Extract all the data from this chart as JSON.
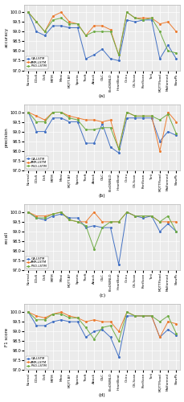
{
  "categories": [
    "Normal",
    "DDoS",
    "DoS",
    "MITM",
    "Mirai",
    "MQTT-BF",
    "Sparta",
    "Theft",
    "Attack",
    "C&C",
    "FileDWNLD",
    "HeartBeat",
    "Okiru",
    "OS-Scan",
    "PortScan",
    "Torii",
    "MQTTFlood",
    "Malformed",
    "SlowPk"
  ],
  "accuracy": {
    "GA_LSTM": [
      100.0,
      99.0,
      98.8,
      99.3,
      99.3,
      99.2,
      99.2,
      97.6,
      97.8,
      98.1,
      97.6,
      97.5,
      99.6,
      99.5,
      99.6,
      99.6,
      97.6,
      98.3,
      97.6
    ],
    "AMR_LSTM": [
      100.0,
      99.5,
      99.0,
      99.8,
      100.0,
      99.5,
      99.4,
      98.8,
      99.3,
      99.3,
      99.1,
      97.8,
      100.0,
      99.7,
      99.7,
      99.7,
      99.4,
      99.5,
      99.0
    ],
    "PSO_LSTM": [
      100.0,
      99.5,
      99.0,
      99.6,
      99.7,
      99.4,
      99.4,
      98.8,
      99.0,
      99.0,
      99.0,
      97.8,
      100.0,
      99.7,
      99.6,
      99.7,
      99.0,
      98.0,
      97.9
    ]
  },
  "precision": {
    "GA_LSTM": [
      100.0,
      99.0,
      99.0,
      99.7,
      99.7,
      99.5,
      99.5,
      98.4,
      98.4,
      99.4,
      98.2,
      97.9,
      99.7,
      99.7,
      99.7,
      99.7,
      98.5,
      99.0,
      98.8
    ],
    "AMR_LSTM": [
      100.0,
      99.8,
      99.6,
      100.0,
      100.0,
      99.8,
      99.7,
      99.6,
      99.6,
      99.5,
      99.6,
      98.1,
      100.0,
      99.8,
      99.8,
      99.8,
      98.0,
      100.0,
      99.5
    ],
    "PSO_LSTM": [
      100.0,
      99.5,
      99.5,
      100.0,
      100.0,
      99.7,
      99.6,
      99.1,
      99.1,
      99.2,
      99.2,
      98.1,
      100.0,
      99.8,
      99.8,
      99.8,
      99.6,
      99.9,
      98.9
    ]
  },
  "recall": {
    "GA_LSTM": [
      100.0,
      99.7,
      99.6,
      99.8,
      99.9,
      99.7,
      99.7,
      99.2,
      99.3,
      99.2,
      99.2,
      97.3,
      100.0,
      99.8,
      99.7,
      99.8,
      99.0,
      99.4,
      99.0
    ],
    "AMR_LSTM": [
      100.0,
      99.8,
      99.8,
      99.9,
      100.0,
      99.6,
      99.5,
      99.5,
      100.0,
      99.5,
      99.5,
      99.5,
      100.0,
      99.8,
      99.8,
      99.8,
      99.5,
      99.5,
      99.5
    ],
    "PSO_LSTM": [
      100.0,
      99.7,
      99.7,
      99.9,
      100.0,
      99.6,
      99.5,
      99.3,
      98.1,
      99.2,
      99.5,
      99.5,
      100.0,
      99.8,
      99.8,
      99.8,
      99.5,
      99.8,
      99.0
    ]
  },
  "f1": {
    "GA_LSTM": [
      100.0,
      99.3,
      99.3,
      99.5,
      99.6,
      99.5,
      99.5,
      98.7,
      99.0,
      99.1,
      98.7,
      97.7,
      99.8,
      99.8,
      99.8,
      99.8,
      98.7,
      99.1,
      98.8
    ],
    "AMR_LSTM": [
      100.0,
      99.8,
      99.7,
      99.9,
      100.0,
      99.8,
      99.7,
      99.5,
      99.6,
      99.5,
      99.5,
      99.0,
      100.0,
      99.8,
      99.8,
      99.8,
      98.7,
      99.5,
      99.4
    ],
    "PSO_LSTM": [
      100.0,
      99.6,
      99.6,
      99.9,
      99.9,
      99.7,
      99.7,
      99.2,
      98.6,
      99.2,
      99.3,
      98.5,
      100.0,
      99.8,
      99.8,
      99.8,
      99.5,
      99.8,
      98.9
    ]
  },
  "colors": {
    "GA_LSTM": "#4472c4",
    "AMR_LSTM": "#ed7d31",
    "PSO_LSTM": "#70ad47"
  },
  "labels": {
    "GA_LSTM": "GA-LSTM",
    "AMR_LSTM": "AMR-LSTM",
    "PSO_LSTM": "PSO-LSTM"
  },
  "ylims": [
    97.0,
    100.4
  ],
  "yticks": [
    97.0,
    97.5,
    98.0,
    98.5,
    99.0,
    99.5,
    100.0
  ],
  "sublabels": [
    "(a)",
    "(b)",
    "(c)",
    "(d)"
  ],
  "ylabels": [
    "accuracy",
    "precision",
    "recall",
    "F1 score"
  ]
}
